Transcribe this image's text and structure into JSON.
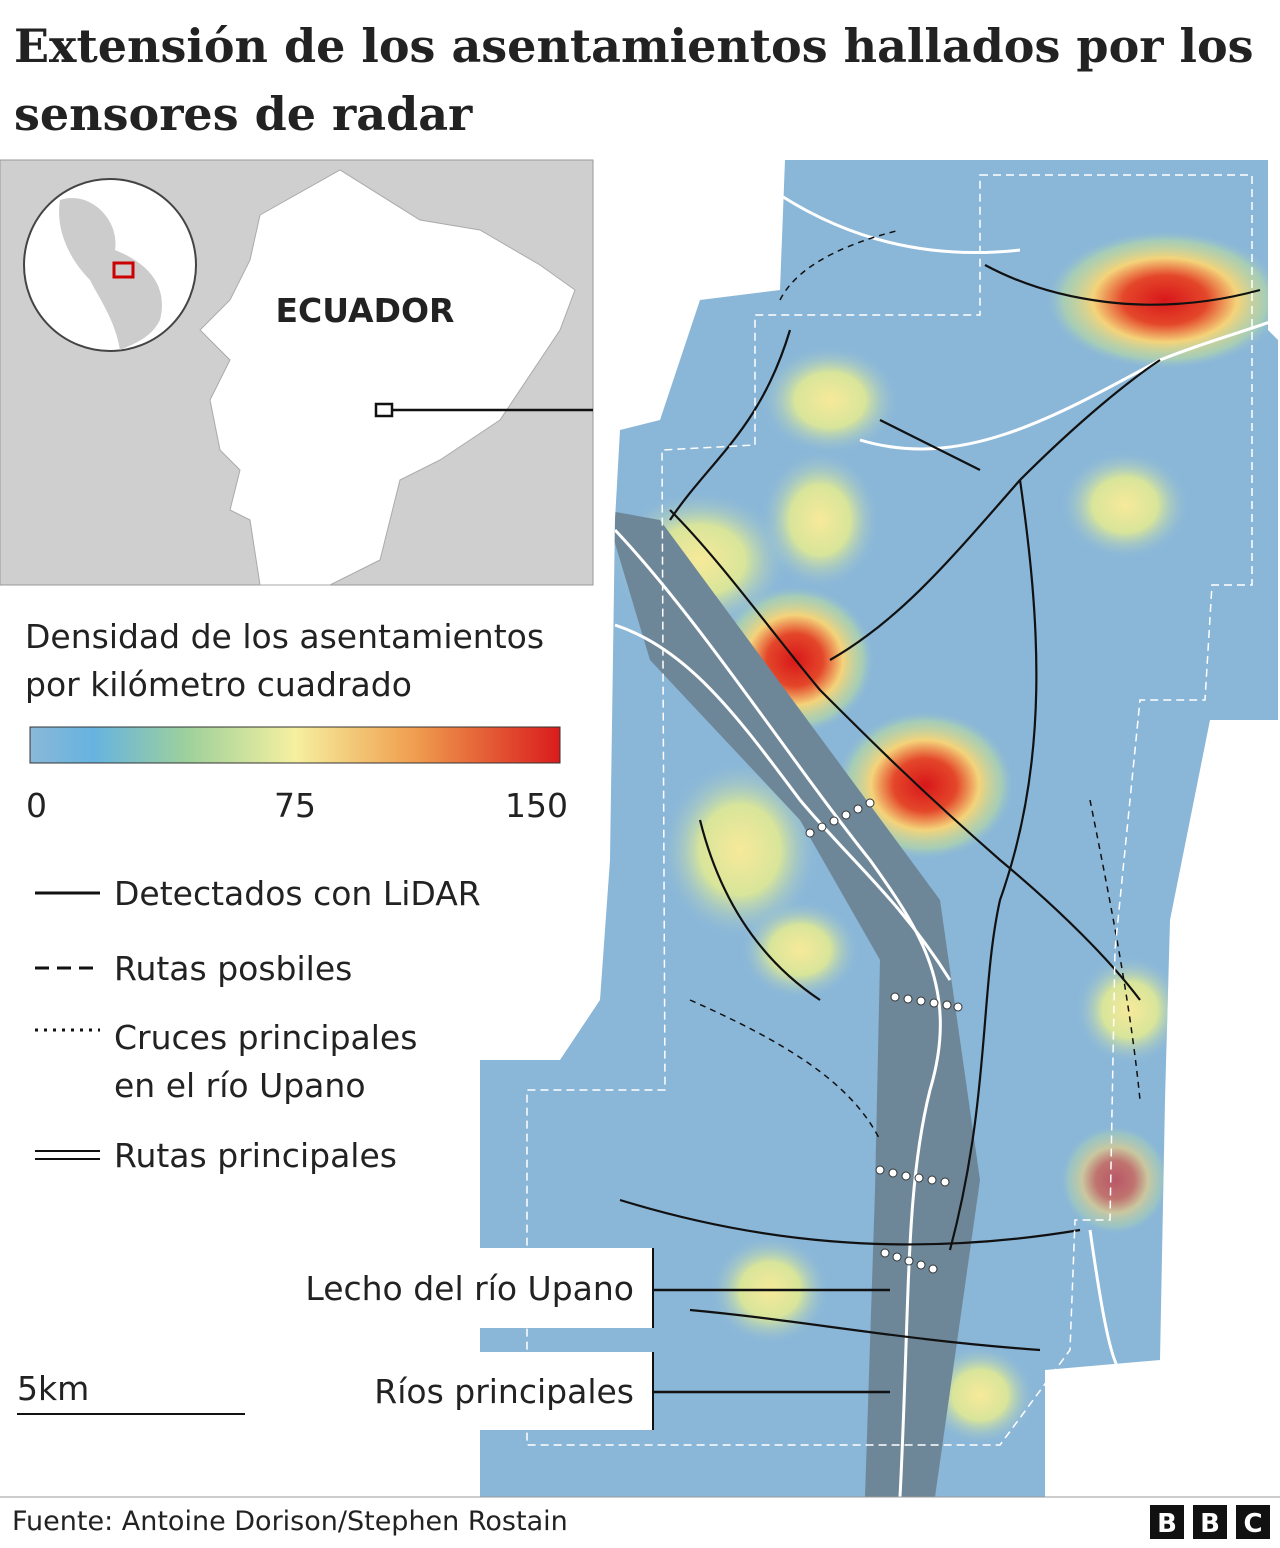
{
  "title": "Extensión de los asentamientos hallados por los sensores de radar",
  "inset": {
    "country": "ECUADOR"
  },
  "legend": {
    "title_line1": "Densidad de los asentamientos",
    "title_line2": "por kilómetro cuadrado",
    "scale": {
      "range": [
        0,
        150
      ],
      "ticks": [
        0,
        75,
        150
      ]
    },
    "items": [
      {
        "label": "Detectados con LiDAR"
      },
      {
        "label": "Rutas posbiles"
      },
      {
        "label_line1": "Cruces principales",
        "label_line2": "en el río Upano"
      },
      {
        "label": "Rutas principales"
      }
    ]
  },
  "annotations": [
    "Lecho del río Upano",
    "Ríos principales"
  ],
  "scale_bar": "5km",
  "source": "Fuente: Antoine Dorison/Stephen Rostain",
  "logo": [
    "B",
    "B",
    "C"
  ]
}
